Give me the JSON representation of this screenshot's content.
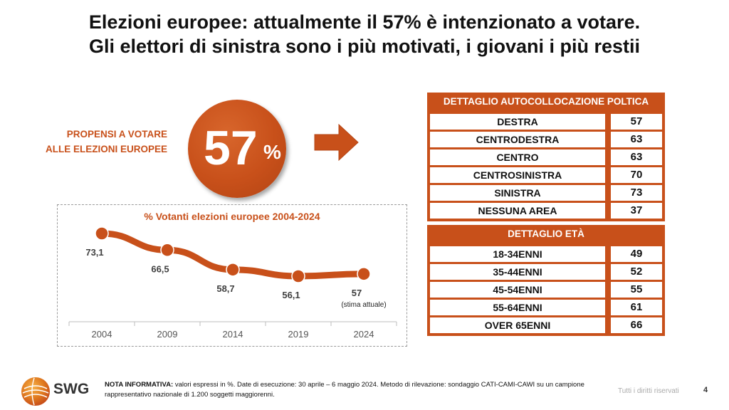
{
  "title": {
    "line1": "Elezioni europee: attualmente il 57% è intenzionato a votare.",
    "line2": "Gli elettori di sinistra sono i più motivati, i giovani i più restii"
  },
  "headline": {
    "label_line1": "PROPENSI A VOTARE",
    "label_line2": "ALLE ELEZIONI EUROPEE",
    "value": "57",
    "unit": "%"
  },
  "political_table": {
    "header": "DETTAGLIO AUTOCOLLOCAZIONE POLTICA",
    "rows": [
      {
        "label": "DESTRA",
        "value": "57"
      },
      {
        "label": "CENTRODESTRA",
        "value": "63"
      },
      {
        "label": "CENTRO",
        "value": "63"
      },
      {
        "label": "CENTROSINISTRA",
        "value": "70"
      },
      {
        "label": "SINISTRA",
        "value": "73"
      },
      {
        "label": "NESSUNA AREA",
        "value": "37"
      }
    ]
  },
  "age_table": {
    "header": "DETTAGLIO ETÀ",
    "rows": [
      {
        "label": "18-34ENNI",
        "value": "49"
      },
      {
        "label": "35-44ENNI",
        "value": "52"
      },
      {
        "label": "45-54ENNI",
        "value": "55"
      },
      {
        "label": "55-64ENNI",
        "value": "61"
      },
      {
        "label": "OVER 65ENNI",
        "value": "66"
      }
    ]
  },
  "chart_data": {
    "type": "line",
    "title": "% Votanti elezioni europee 2004-2024",
    "categories": [
      "2004",
      "2009",
      "2014",
      "2019",
      "2024"
    ],
    "values": [
      73.1,
      66.5,
      58.7,
      56.1,
      57
    ],
    "data_labels": [
      "73,1",
      "66,5",
      "58,7",
      "56,1",
      "57"
    ],
    "annotation": "(stima attuale)",
    "xlabel": "",
    "ylabel": "",
    "grid": false,
    "color": "#c8501a"
  },
  "footer": {
    "logo_text": "SWG",
    "nota_label": "NOTA INFORMATIVA:",
    "nota_text": " valori espressi in %. Date di esecuzione: 30 aprile – 6 maggio 2024. Metodo di rilevazione: sondaggio CATI-CAMI-CAWI su un campione rappresentativo nazionale di 1.200 soggetti maggiorenni.",
    "rights": "Tutti i diritti riservati",
    "page": "4"
  },
  "colors": {
    "accent": "#c8501a"
  }
}
